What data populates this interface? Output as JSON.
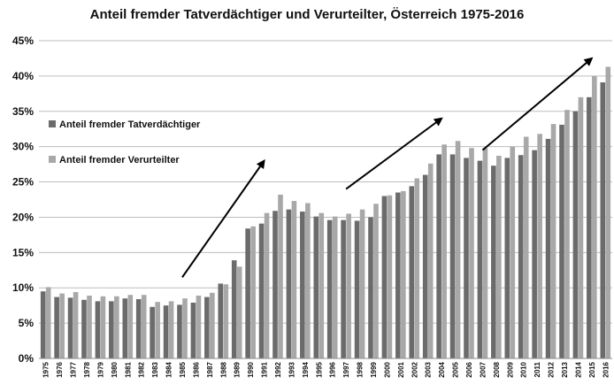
{
  "chart_data": {
    "type": "bar",
    "title": "Anteil fremder Tatverdächtiger und Verurteilter, Österreich 1975-2016",
    "xlabel": "",
    "ylabel": "",
    "ylim": [
      0,
      45
    ],
    "yticks": [
      "0%",
      "5%",
      "10%",
      "15%",
      "20%",
      "25%",
      "30%",
      "35%",
      "40%",
      "45%"
    ],
    "grid": true,
    "legend_position": "left, inside plot",
    "categories": [
      "1975",
      "1976",
      "1977",
      "1978",
      "1979",
      "1980",
      "1981",
      "1982",
      "1983",
      "1984",
      "1985",
      "1986",
      "1987",
      "1988",
      "1989",
      "1990",
      "1991",
      "1992",
      "1993",
      "1994",
      "1995",
      "1996",
      "1997",
      "1998",
      "1999",
      "2000",
      "2001",
      "2002",
      "2003",
      "2004",
      "2005",
      "2006",
      "2007",
      "2008",
      "2009",
      "2010",
      "2011",
      "2012",
      "2013",
      "2014",
      "2015",
      "2016"
    ],
    "series": [
      {
        "name": "Anteil fremder Tatverdächtiger",
        "color": "#6b6b6b",
        "values": [
          9.5,
          8.7,
          8.6,
          8.3,
          8.1,
          8.1,
          8.5,
          8.4,
          7.3,
          7.5,
          7.6,
          7.9,
          8.7,
          10.6,
          13.9,
          18.4,
          19.1,
          20.9,
          21.1,
          20.8,
          20.1,
          19.6,
          19.6,
          19.5,
          20.0,
          23.0,
          23.5,
          24.4,
          26.0,
          28.9,
          28.9,
          28.4,
          28.0,
          27.3,
          28.4,
          28.8,
          29.5,
          31.1,
          33.1,
          35.0,
          37.0,
          39.1
        ]
      },
      {
        "name": "Anteil fremder Verurteilter",
        "color": "#a8a8a8",
        "values": [
          10.1,
          9.2,
          9.4,
          8.9,
          8.8,
          8.8,
          9.0,
          9.0,
          8.0,
          8.1,
          8.5,
          8.9,
          9.3,
          10.5,
          13.0,
          18.7,
          20.6,
          23.2,
          22.3,
          22.0,
          20.6,
          20.1,
          20.5,
          21.1,
          21.9,
          23.1,
          23.7,
          25.5,
          27.6,
          30.3,
          30.8,
          29.8,
          29.8,
          28.7,
          30.0,
          31.4,
          31.8,
          33.2,
          35.2,
          37.0,
          40.0,
          41.3
        ]
      }
    ],
    "annotations": [
      {
        "type": "arrow",
        "from": {
          "x": "1985",
          "y": 11.5
        },
        "to": {
          "x": "1991",
          "y": 28.0
        }
      },
      {
        "type": "arrow",
        "from": {
          "x": "1997",
          "y": 24.0
        },
        "to": {
          "x": "2004",
          "y": 34.0
        }
      },
      {
        "type": "arrow",
        "from": {
          "x": "2007",
          "y": 29.5
        },
        "to": {
          "x": "2015",
          "y": 42.5
        }
      }
    ]
  }
}
